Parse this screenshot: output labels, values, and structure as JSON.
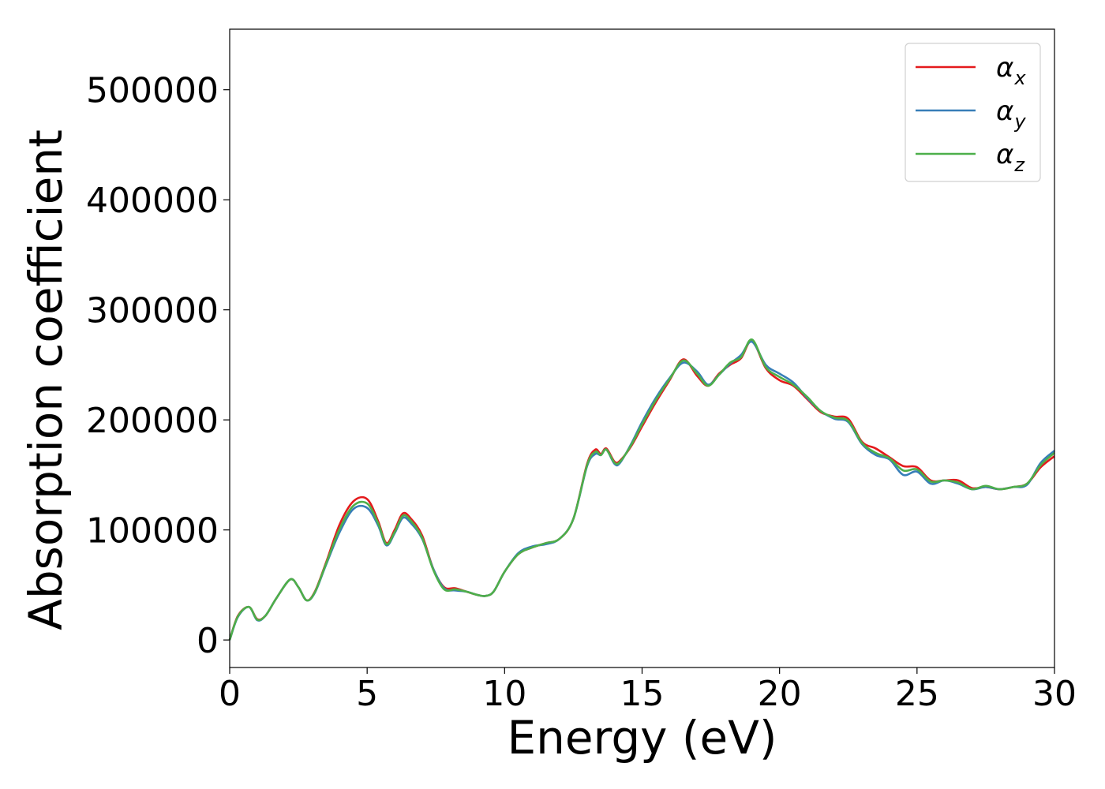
{
  "chart_data": {
    "type": "line",
    "title": "",
    "xlabel": "Energy (eV)",
    "ylabel": "Absorption coefficient",
    "xlim": [
      0,
      30
    ],
    "ylim": [
      -25000,
      555000
    ],
    "xticks": [
      0,
      5,
      10,
      15,
      20,
      25,
      30
    ],
    "xtick_labels": [
      "0",
      "5",
      "10",
      "15",
      "20",
      "25",
      "30"
    ],
    "yticks": [
      0,
      100000,
      200000,
      300000,
      400000,
      500000
    ],
    "ytick_labels": [
      "0",
      "100000",
      "200000",
      "300000",
      "400000",
      "500000"
    ],
    "grid": false,
    "legend_position": "top-right",
    "x": [
      0.0,
      0.3,
      0.7,
      1.0,
      1.3,
      1.7,
      2.2,
      2.5,
      2.8,
      3.1,
      3.5,
      4.0,
      4.5,
      5.0,
      5.4,
      5.7,
      6.0,
      6.3,
      6.6,
      7.0,
      7.4,
      7.8,
      8.2,
      8.6,
      9.0,
      9.3,
      9.6,
      10.0,
      10.5,
      11.0,
      11.5,
      12.0,
      12.5,
      13.0,
      13.3,
      13.5,
      13.7,
      14.0,
      14.2,
      14.6,
      15.0,
      15.5,
      16.0,
      16.5,
      17.0,
      17.4,
      17.8,
      18.2,
      18.6,
      19.0,
      19.5,
      20.0,
      20.5,
      21.0,
      21.5,
      22.0,
      22.5,
      23.0,
      23.5,
      24.0,
      24.5,
      25.0,
      25.5,
      26.0,
      26.5,
      27.0,
      27.5,
      28.0,
      28.5,
      29.0,
      29.5,
      30.0
    ],
    "series": [
      {
        "name": "αx",
        "label_main": "α",
        "label_sub": "x",
        "color": "#e41a1c",
        "values": [
          0,
          22000,
          30000,
          19000,
          22000,
          38000,
          55000,
          48000,
          36000,
          44000,
          70000,
          105000,
          126000,
          128000,
          108000,
          88000,
          100000,
          115000,
          110000,
          95000,
          65000,
          48000,
          47000,
          44000,
          41000,
          40000,
          44000,
          62000,
          78000,
          84000,
          88000,
          92000,
          110000,
          160000,
          173000,
          169000,
          174000,
          162000,
          163000,
          176000,
          194000,
          216000,
          236000,
          255000,
          240000,
          231000,
          242000,
          250000,
          256000,
          272000,
          247000,
          236000,
          231000,
          219000,
          207000,
          203000,
          201000,
          180000,
          174000,
          166000,
          158000,
          157000,
          145000,
          145000,
          145000,
          138000,
          139000,
          137000,
          139000,
          142000,
          157000,
          167000
        ]
      },
      {
        "name": "αy",
        "label_main": "α",
        "label_sub": "y",
        "color": "#377eb8",
        "values": [
          0,
          21000,
          30000,
          18000,
          22000,
          38000,
          55000,
          48000,
          36000,
          43000,
          68000,
          98000,
          119000,
          120000,
          104000,
          86000,
          97000,
          111000,
          106000,
          92000,
          65000,
          47000,
          45000,
          44000,
          41000,
          40000,
          44000,
          62000,
          79000,
          85000,
          87000,
          92000,
          110000,
          158000,
          169000,
          168000,
          173000,
          160000,
          161000,
          178000,
          198000,
          220000,
          238000,
          252000,
          244000,
          232000,
          241000,
          251000,
          259000,
          271000,
          250000,
          242000,
          234000,
          220000,
          208000,
          201000,
          198000,
          178000,
          168000,
          164000,
          150000,
          153000,
          142000,
          145000,
          142000,
          137000,
          139000,
          137000,
          139000,
          141000,
          161000,
          172000
        ]
      },
      {
        "name": "αz",
        "label_main": "α",
        "label_sub": "z",
        "color": "#4daf4a",
        "values": [
          0,
          21500,
          30000,
          18500,
          22000,
          38000,
          55000,
          48000,
          36000,
          43500,
          69000,
          101000,
          122000,
          124000,
          106000,
          87000,
          98000,
          113000,
          108000,
          93000,
          64000,
          46000,
          46000,
          44000,
          41000,
          40000,
          44000,
          62000,
          78000,
          84000,
          88000,
          92000,
          110000,
          159000,
          171000,
          168000,
          173000,
          161000,
          162000,
          177000,
          196000,
          218000,
          237000,
          254000,
          242000,
          231000,
          241000,
          252000,
          257000,
          273000,
          248000,
          239000,
          232000,
          221000,
          208000,
          202000,
          199000,
          179000,
          170000,
          165000,
          154000,
          155000,
          144000,
          145000,
          143000,
          137000,
          140000,
          137000,
          139000,
          142000,
          159000,
          170000
        ]
      }
    ]
  }
}
